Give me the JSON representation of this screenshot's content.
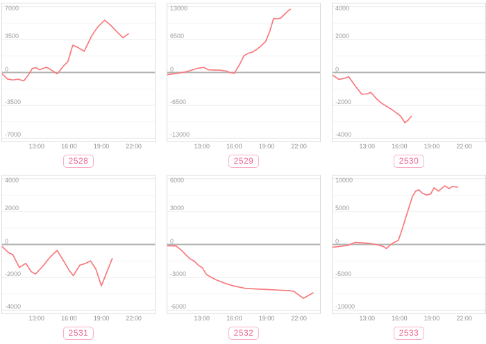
{
  "colors": {
    "line": "#f8797d",
    "zero_line": "#b3b3b3",
    "grid_major": "#e9e9e9",
    "grid_minor": "#f5f5f5",
    "plot_border": "#dcdcdc",
    "tick_text": "#8f8f8f",
    "badge_text": "#ee6790",
    "badge_border": "#f7afc7"
  },
  "axis": {
    "x_tick_labels": [
      "13:00",
      "16:00",
      "19:00",
      "22:00"
    ],
    "x_tick_hours": [
      13,
      16,
      19,
      22
    ],
    "x_domain_hours": [
      9.8,
      23.95
    ],
    "y_overscan": 1.05
  },
  "chart_data": [
    {
      "type": "line",
      "id": "2528",
      "badge_label": "2528",
      "ymax": 7000,
      "ylim": [
        -7350,
        7350
      ],
      "y_tick_labels": [
        "7000",
        "3500",
        "0",
        "-3500",
        "-7000"
      ],
      "x_tick_labels": [
        "13:00",
        "16:00",
        "19:00",
        "22:00"
      ],
      "series": [
        {
          "name": "2528",
          "points": [
            [
              9.8,
              -150
            ],
            [
              10.3,
              -700
            ],
            [
              10.8,
              -800
            ],
            [
              11.3,
              -720
            ],
            [
              11.8,
              -900
            ],
            [
              12.25,
              -250
            ],
            [
              12.6,
              420
            ],
            [
              12.95,
              520
            ],
            [
              13.25,
              300
            ],
            [
              13.6,
              420
            ],
            [
              13.9,
              560
            ],
            [
              14.3,
              300
            ],
            [
              14.9,
              -150
            ],
            [
              15.5,
              700
            ],
            [
              15.9,
              1150
            ],
            [
              16.35,
              2900
            ],
            [
              16.8,
              2680
            ],
            [
              17.4,
              2250
            ],
            [
              18.1,
              3900
            ],
            [
              18.7,
              4900
            ],
            [
              19.3,
              5560
            ],
            [
              19.8,
              5100
            ],
            [
              20.4,
              4380
            ],
            [
              21.0,
              3700
            ],
            [
              21.5,
              4120
            ]
          ]
        }
      ]
    },
    {
      "type": "line",
      "id": "2529",
      "badge_label": "2529",
      "ymax": 13000,
      "ylim": [
        -13650,
        13650
      ],
      "y_tick_labels": [
        "13000",
        "6500",
        "0",
        "-6500",
        "-13000"
      ],
      "x_tick_labels": [
        "13:00",
        "16:00",
        "19:00",
        "22:00"
      ],
      "series": [
        {
          "name": "2529",
          "points": [
            [
              9.8,
              -420
            ],
            [
              10.5,
              -220
            ],
            [
              11.0,
              -80
            ],
            [
              11.5,
              120
            ],
            [
              12.0,
              420
            ],
            [
              12.6,
              820
            ],
            [
              13.2,
              1000
            ],
            [
              13.6,
              520
            ],
            [
              14.1,
              480
            ],
            [
              14.7,
              450
            ],
            [
              15.2,
              300
            ],
            [
              15.7,
              -60
            ],
            [
              16.0,
              -160
            ],
            [
              16.5,
              1600
            ],
            [
              16.9,
              3300
            ],
            [
              17.3,
              3800
            ],
            [
              17.7,
              4050
            ],
            [
              18.1,
              4600
            ],
            [
              18.5,
              5300
            ],
            [
              18.9,
              6100
            ],
            [
              19.3,
              8200
            ],
            [
              19.65,
              10700
            ],
            [
              20.0,
              10600
            ],
            [
              20.3,
              10750
            ],
            [
              20.7,
              11600
            ],
            [
              21.0,
              12200
            ],
            [
              21.2,
              12500
            ]
          ]
        }
      ]
    },
    {
      "type": "line",
      "id": "2530",
      "badge_label": "2530",
      "ymax": 4000,
      "ylim": [
        -4200,
        4200
      ],
      "y_tick_labels": [
        "4000",
        "2000",
        "0",
        "-2000",
        "-4000"
      ],
      "x_tick_labels": [
        "13:00",
        "16:00",
        "19:00",
        "22:00"
      ],
      "series": [
        {
          "name": "2530",
          "points": [
            [
              9.8,
              -160
            ],
            [
              10.4,
              -420
            ],
            [
              10.9,
              -350
            ],
            [
              11.3,
              -260
            ],
            [
              11.9,
              -820
            ],
            [
              12.5,
              -1320
            ],
            [
              13.0,
              -1300
            ],
            [
              13.35,
              -1210
            ],
            [
              13.9,
              -1620
            ],
            [
              14.3,
              -1850
            ],
            [
              14.8,
              -2060
            ],
            [
              15.3,
              -2260
            ],
            [
              15.8,
              -2500
            ],
            [
              16.1,
              -2660
            ],
            [
              16.5,
              -3060
            ],
            [
              16.8,
              -2900
            ],
            [
              17.1,
              -2660
            ]
          ]
        }
      ]
    },
    {
      "type": "line",
      "id": "2531",
      "badge_label": "2531",
      "ymax": 4000,
      "ylim": [
        -4200,
        4200
      ],
      "y_tick_labels": [
        "4000",
        "2000",
        "0",
        "-2000",
        "-4000"
      ],
      "x_tick_labels": [
        "13:00",
        "16:00",
        "19:00",
        "22:00"
      ],
      "series": [
        {
          "name": "2531",
          "points": [
            [
              9.8,
              -120
            ],
            [
              10.4,
              -500
            ],
            [
              10.8,
              -620
            ],
            [
              11.4,
              -1400
            ],
            [
              12.0,
              -1150
            ],
            [
              12.5,
              -1660
            ],
            [
              12.9,
              -1800
            ],
            [
              13.6,
              -1300
            ],
            [
              14.2,
              -800
            ],
            [
              14.9,
              -360
            ],
            [
              15.5,
              -1000
            ],
            [
              16.0,
              -1560
            ],
            [
              16.4,
              -1900
            ],
            [
              17.0,
              -1260
            ],
            [
              17.5,
              -1160
            ],
            [
              18.0,
              -1000
            ],
            [
              18.5,
              -1520
            ],
            [
              19.0,
              -2520
            ],
            [
              20.0,
              -860
            ]
          ]
        }
      ]
    },
    {
      "type": "line",
      "id": "2532",
      "badge_label": "2532",
      "ymax": 6000,
      "ylim": [
        -6300,
        6300
      ],
      "y_tick_labels": [
        "6000",
        "3000",
        "0",
        "-3000",
        "-6000"
      ],
      "x_tick_labels": [
        "13:00",
        "16:00",
        "19:00",
        "22:00"
      ],
      "series": [
        {
          "name": "2532",
          "points": [
            [
              9.8,
              -120
            ],
            [
              10.6,
              -130
            ],
            [
              11.1,
              -520
            ],
            [
              11.5,
              -920
            ],
            [
              11.9,
              -1320
            ],
            [
              12.3,
              -1520
            ],
            [
              12.7,
              -1920
            ],
            [
              13.05,
              -2120
            ],
            [
              13.4,
              -2720
            ],
            [
              13.9,
              -3020
            ],
            [
              14.4,
              -3260
            ],
            [
              14.9,
              -3460
            ],
            [
              15.5,
              -3660
            ],
            [
              16.0,
              -3800
            ],
            [
              16.5,
              -3900
            ],
            [
              17.0,
              -4000
            ],
            [
              18.0,
              -4060
            ],
            [
              19.0,
              -4110
            ],
            [
              20.0,
              -4160
            ],
            [
              21.0,
              -4210
            ],
            [
              21.5,
              -4260
            ],
            [
              22.4,
              -4920
            ],
            [
              23.3,
              -4420
            ]
          ]
        }
      ]
    },
    {
      "type": "line",
      "id": "2533",
      "badge_label": "2533",
      "ymax": 10000,
      "ylim": [
        -10500,
        10500
      ],
      "y_tick_labels": [
        "10000",
        "5000",
        "0",
        "-5000",
        "-10000"
      ],
      "x_tick_labels": [
        "13:00",
        "16:00",
        "19:00",
        "22:00"
      ],
      "series": [
        {
          "name": "2533",
          "points": [
            [
              9.8,
              -420
            ],
            [
              10.5,
              -300
            ],
            [
              11.2,
              -140
            ],
            [
              11.9,
              320
            ],
            [
              12.4,
              260
            ],
            [
              13.0,
              200
            ],
            [
              13.6,
              80
            ],
            [
              14.1,
              -120
            ],
            [
              14.5,
              -320
            ],
            [
              14.8,
              -620
            ],
            [
              15.3,
              150
            ],
            [
              15.9,
              620
            ],
            [
              16.3,
              2600
            ],
            [
              16.75,
              5000
            ],
            [
              17.2,
              7300
            ],
            [
              17.5,
              8120
            ],
            [
              17.8,
              8320
            ],
            [
              18.1,
              7820
            ],
            [
              18.5,
              7520
            ],
            [
              18.9,
              7700
            ],
            [
              19.2,
              8620
            ],
            [
              19.6,
              8120
            ],
            [
              20.2,
              8920
            ],
            [
              20.6,
              8520
            ],
            [
              20.9,
              8820
            ],
            [
              21.4,
              8720
            ]
          ]
        }
      ]
    }
  ]
}
